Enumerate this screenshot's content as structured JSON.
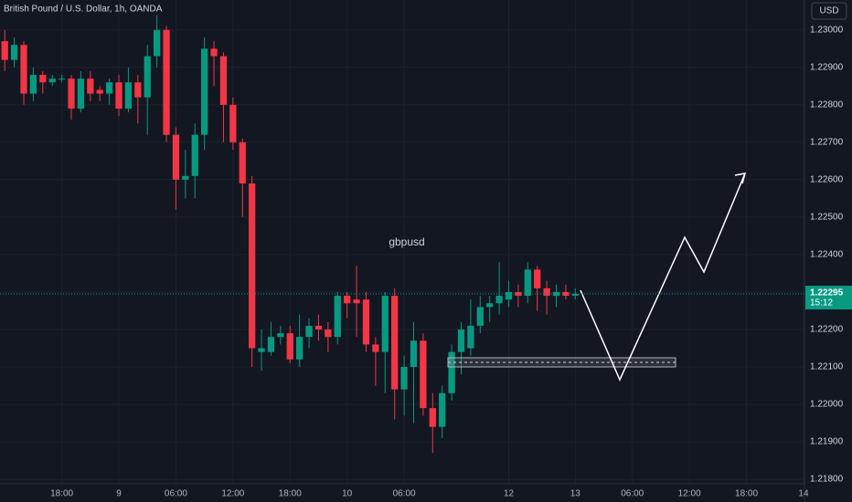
{
  "chart_data": {
    "type": "candlestick",
    "title": "British Pound / U.S. Dollar, 1h, OANDA",
    "annotation": "gbpusd",
    "currency": "USD",
    "up_color": "#089981",
    "down_color": "#f23645",
    "grid": true,
    "xlim": [
      -0.5,
      84.1
    ],
    "ylim": [
      1.21788,
      1.2308
    ],
    "xticks": [
      {
        "value": 6,
        "label": "18:00"
      },
      {
        "value": 12,
        "label": "9"
      },
      {
        "value": 18,
        "label": "06:00"
      },
      {
        "value": 24,
        "label": "12:00"
      },
      {
        "value": 30,
        "label": "18:00"
      },
      {
        "value": 36,
        "label": "10"
      },
      {
        "value": 42,
        "label": "06:00"
      },
      {
        "value": 53,
        "label": "12"
      },
      {
        "value": 60,
        "label": "13"
      },
      {
        "value": 66,
        "label": "06:00"
      },
      {
        "value": 72,
        "label": "12:00"
      },
      {
        "value": 78,
        "label": "18:00"
      },
      {
        "value": 84,
        "label": "14"
      }
    ],
    "yticks": [
      {
        "value": 1.218,
        "label": "1.21800"
      },
      {
        "value": 1.219,
        "label": "1.21900"
      },
      {
        "value": 1.22,
        "label": "1.22000"
      },
      {
        "value": 1.221,
        "label": "1.22100"
      },
      {
        "value": 1.222,
        "label": "1.22200"
      },
      {
        "value": 1.223,
        "label": "1.22300"
      },
      {
        "value": 1.224,
        "label": "1.22400"
      },
      {
        "value": 1.225,
        "label": "1.22500"
      },
      {
        "value": 1.226,
        "label": "1.22600"
      },
      {
        "value": 1.227,
        "label": "1.22700"
      },
      {
        "value": 1.228,
        "label": "1.22800"
      },
      {
        "value": 1.229,
        "label": "1.22900"
      },
      {
        "value": 1.23,
        "label": "1.23000"
      }
    ],
    "last_price": {
      "value": 1.22295,
      "label": "1.22295"
    },
    "countdown": "15:12",
    "candles": {
      "x": [
        0,
        1,
        2,
        3,
        4,
        5,
        6,
        7,
        8,
        9,
        10,
        11,
        12,
        13,
        14,
        15,
        16,
        17,
        18,
        19,
        20,
        21,
        22,
        23,
        24,
        25,
        26,
        27,
        28,
        29,
        30,
        31,
        32,
        33,
        34,
        35,
        36,
        37,
        38,
        39,
        40,
        41,
        42,
        43,
        44,
        45,
        46,
        47,
        48,
        49,
        50,
        51,
        52,
        53,
        54,
        55,
        56,
        57,
        58,
        59,
        60
      ],
      "open": [
        1.2297,
        1.2292,
        1.2296,
        1.2283,
        1.2288,
        1.2286,
        1.2287,
        1.2287,
        1.2279,
        1.2287,
        1.2284,
        1.2283,
        1.2286,
        1.2279,
        1.2286,
        1.2282,
        1.2293,
        1.23,
        1.2272,
        1.226,
        1.2261,
        1.2272,
        1.2295,
        1.2293,
        1.228,
        1.227,
        1.2259,
        1.2214,
        1.2214,
        1.2218,
        1.2219,
        1.2212,
        1.2218,
        1.2221,
        1.222,
        1.2218,
        1.2229,
        1.2228,
        1.2228,
        1.2216,
        1.2214,
        1.2229,
        1.2204,
        1.221,
        1.2217,
        1.2199,
        1.2194,
        1.2203,
        1.2214,
        1.2215,
        1.2221,
        1.2226,
        1.2227,
        1.2228,
        1.223,
        1.2229,
        1.2236,
        1.2231,
        1.2229,
        1.223,
        1.2229
      ],
      "high": [
        1.23,
        1.2298,
        1.2297,
        1.229,
        1.2289,
        1.2288,
        1.2288,
        1.2288,
        1.2289,
        1.2289,
        1.2285,
        1.2287,
        1.2288,
        1.229,
        1.2288,
        1.2296,
        1.2304,
        1.2301,
        1.2274,
        1.2268,
        1.2275,
        1.2298,
        1.2297,
        1.2294,
        1.2282,
        1.2271,
        1.2261,
        1.222,
        1.2222,
        1.2221,
        1.2221,
        1.2224,
        1.2223,
        1.2224,
        1.2222,
        1.223,
        1.223,
        1.2237,
        1.223,
        1.2218,
        1.223,
        1.2231,
        1.2213,
        1.2222,
        1.2219,
        1.2203,
        1.2205,
        1.2216,
        1.2222,
        1.2228,
        1.2229,
        1.2229,
        1.2238,
        1.2233,
        1.2232,
        1.2238,
        1.2237,
        1.2233,
        1.2232,
        1.2232,
        1.2231
      ],
      "low": [
        1.2289,
        1.229,
        1.228,
        1.2281,
        1.2283,
        1.2285,
        1.2286,
        1.2276,
        1.2278,
        1.2281,
        1.2281,
        1.228,
        1.2277,
        1.2278,
        1.2275,
        1.2272,
        1.229,
        1.227,
        1.2252,
        1.2255,
        1.2255,
        1.2268,
        1.2285,
        1.227,
        1.2268,
        1.225,
        1.221,
        1.2209,
        1.2213,
        1.2216,
        1.2211,
        1.221,
        1.2215,
        1.2217,
        1.2214,
        1.2216,
        1.2223,
        1.2218,
        1.2214,
        1.2205,
        1.2203,
        1.2196,
        1.2197,
        1.2195,
        1.2197,
        1.2187,
        1.2191,
        1.2201,
        1.2208,
        1.2213,
        1.2219,
        1.2222,
        1.2224,
        1.2226,
        1.2226,
        1.2227,
        1.2225,
        1.2224,
        1.2226,
        1.2228,
        1.2228
      ],
      "close": [
        1.2292,
        1.2296,
        1.2283,
        1.2288,
        1.2286,
        1.2287,
        1.2287,
        1.2279,
        1.2287,
        1.2283,
        1.2283,
        1.2286,
        1.2279,
        1.2286,
        1.2282,
        1.2293,
        1.23,
        1.2272,
        1.226,
        1.2261,
        1.2272,
        1.2295,
        1.2293,
        1.228,
        1.227,
        1.2259,
        1.2215,
        1.2215,
        1.2218,
        1.2219,
        1.2212,
        1.2218,
        1.2221,
        1.222,
        1.2218,
        1.2229,
        1.2227,
        1.2227,
        1.2216,
        1.2214,
        1.2229,
        1.2204,
        1.221,
        1.2217,
        1.2199,
        1.2194,
        1.2203,
        1.2214,
        1.222,
        1.2221,
        1.2226,
        1.2227,
        1.2229,
        1.223,
        1.2229,
        1.2236,
        1.2231,
        1.2229,
        1.223,
        1.2229,
        1.22295
      ]
    }
  }
}
